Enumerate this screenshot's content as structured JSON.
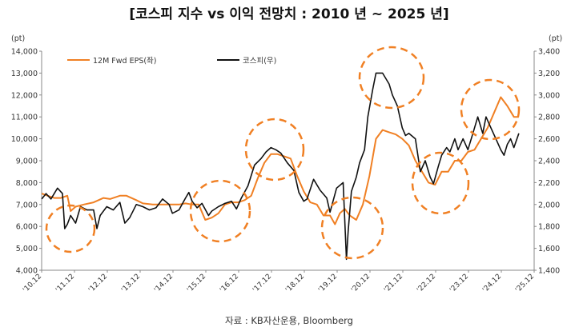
{
  "chart_data": {
    "type": "line",
    "title": "[코스피 지수 vs 이익 전망치 : 2010 년 ~ 2025 년]",
    "source": "자료 : KB자산운용, Bloomberg",
    "left_axis": {
      "unit": "(pt)",
      "ylim": [
        4000,
        14000
      ],
      "ticks": [
        "4,000",
        "5,000",
        "6,000",
        "7,000",
        "8,000",
        "9,000",
        "10,000",
        "11,000",
        "12,000",
        "13,000",
        "14,000"
      ]
    },
    "right_axis": {
      "unit": "(pt)",
      "ylim": [
        1400,
        3400
      ],
      "ticks": [
        "1,400",
        "1,600",
        "1,800",
        "2,000",
        "2,200",
        "2,400",
        "2,600",
        "2,800",
        "3,000",
        "3,200",
        "3,400"
      ]
    },
    "x_tick_labels": [
      "'10.12",
      "'11.12",
      "'12.12",
      "'13.12",
      "'14.12",
      "'15.12",
      "'16.12",
      "'17.12",
      "'18.12",
      "'19.12",
      "'20.12",
      "'21.12",
      "'22.12",
      "'23.12",
      "'24.12",
      "'25.12"
    ],
    "x_range": [
      2010.917,
      2025.917
    ],
    "grid": false,
    "legend_position": "top-left",
    "series": [
      {
        "name": "12M Fwd EPS(좌)",
        "axis": "left",
        "color": "#F08024",
        "x": [
          2010.92,
          2011.1,
          2011.3,
          2011.5,
          2011.7,
          2011.8,
          2011.95,
          2012.2,
          2012.5,
          2012.8,
          2013.0,
          2013.3,
          2013.5,
          2013.8,
          2014.0,
          2014.3,
          2014.6,
          2014.9,
          2015.1,
          2015.3,
          2015.5,
          2015.7,
          2015.9,
          2016.1,
          2016.3,
          2016.5,
          2016.7,
          2016.9,
          2017.1,
          2017.3,
          2017.5,
          2017.7,
          2017.9,
          2018.1,
          2018.3,
          2018.5,
          2018.7,
          2018.9,
          2019.1,
          2019.3,
          2019.5,
          2019.7,
          2019.85,
          2020.0,
          2020.15,
          2020.3,
          2020.5,
          2020.7,
          2020.9,
          2021.1,
          2021.3,
          2021.5,
          2021.7,
          2021.9,
          2022.1,
          2022.3,
          2022.5,
          2022.7,
          2022.9,
          2023.1,
          2023.3,
          2023.5,
          2023.7,
          2023.9,
          2024.1,
          2024.3,
          2024.5,
          2024.7,
          2024.9,
          2025.1,
          2025.3,
          2025.45
        ],
        "values": [
          7500,
          7400,
          7300,
          7300,
          7400,
          6700,
          6900,
          7000,
          7100,
          7300,
          7250,
          7400,
          7400,
          7200,
          7050,
          7000,
          7000,
          7000,
          7000,
          7050,
          7000,
          7000,
          6300,
          6400,
          6600,
          7000,
          7100,
          7100,
          7200,
          7400,
          8200,
          8900,
          9300,
          9300,
          9200,
          9100,
          8300,
          7600,
          7100,
          7000,
          6500,
          6500,
          6100,
          6600,
          6800,
          6500,
          6300,
          7000,
          8300,
          10000,
          10400,
          10300,
          10200,
          10000,
          9700,
          9000,
          8500,
          8000,
          7900,
          8500,
          8500,
          9000,
          9000,
          9400,
          9500,
          10000,
          10500,
          11200,
          11900,
          11500,
          11000,
          11000
        ]
      },
      {
        "name": "코스피(우)",
        "axis": "right",
        "color": "#111111",
        "x": [
          2010.92,
          2011.05,
          2011.2,
          2011.4,
          2011.55,
          2011.62,
          2011.7,
          2011.8,
          2011.95,
          2012.1,
          2012.3,
          2012.5,
          2012.6,
          2012.7,
          2012.9,
          2013.1,
          2013.3,
          2013.45,
          2013.6,
          2013.8,
          2014.0,
          2014.2,
          2014.4,
          2014.6,
          2014.8,
          2014.9,
          2015.1,
          2015.3,
          2015.4,
          2015.5,
          2015.65,
          2015.8,
          2016.0,
          2016.1,
          2016.3,
          2016.5,
          2016.7,
          2016.85,
          2017.0,
          2017.2,
          2017.4,
          2017.6,
          2017.75,
          2017.9,
          2018.05,
          2018.2,
          2018.4,
          2018.6,
          2018.75,
          2018.9,
          2019.0,
          2019.2,
          2019.4,
          2019.6,
          2019.7,
          2019.9,
          2020.1,
          2020.2,
          2020.25,
          2020.35,
          2020.5,
          2020.6,
          2020.75,
          2020.85,
          2021.0,
          2021.1,
          2021.3,
          2021.5,
          2021.6,
          2021.75,
          2021.9,
          2022.0,
          2022.1,
          2022.3,
          2022.45,
          2022.6,
          2022.75,
          2022.85,
          2023.0,
          2023.1,
          2023.25,
          2023.35,
          2023.5,
          2023.6,
          2023.75,
          2023.9,
          2024.05,
          2024.2,
          2024.35,
          2024.45,
          2024.6,
          2024.75,
          2024.9,
          2025.0,
          2025.1,
          2025.2,
          2025.3,
          2025.45
        ],
        "values": [
          2050,
          2100,
          2050,
          2150,
          2100,
          1780,
          1820,
          1900,
          1830,
          1980,
          1950,
          1950,
          1780,
          1900,
          1980,
          1950,
          2020,
          1830,
          1880,
          2000,
          1980,
          1950,
          1970,
          2050,
          2000,
          1920,
          1950,
          2060,
          2110,
          2030,
          1970,
          2010,
          1900,
          1940,
          1980,
          2010,
          2030,
          1960,
          2060,
          2170,
          2360,
          2420,
          2480,
          2520,
          2500,
          2470,
          2380,
          2310,
          2110,
          2030,
          2050,
          2230,
          2130,
          2060,
          1930,
          2150,
          2200,
          1500,
          1750,
          2120,
          2250,
          2380,
          2500,
          2800,
          3050,
          3200,
          3200,
          3100,
          3000,
          2900,
          2700,
          2630,
          2650,
          2600,
          2300,
          2400,
          2250,
          2190,
          2350,
          2450,
          2520,
          2480,
          2600,
          2500,
          2600,
          2500,
          2650,
          2800,
          2650,
          2800,
          2700,
          2600,
          2500,
          2450,
          2550,
          2600,
          2520,
          2650
        ]
      }
    ],
    "highlight_circles": 11
  }
}
